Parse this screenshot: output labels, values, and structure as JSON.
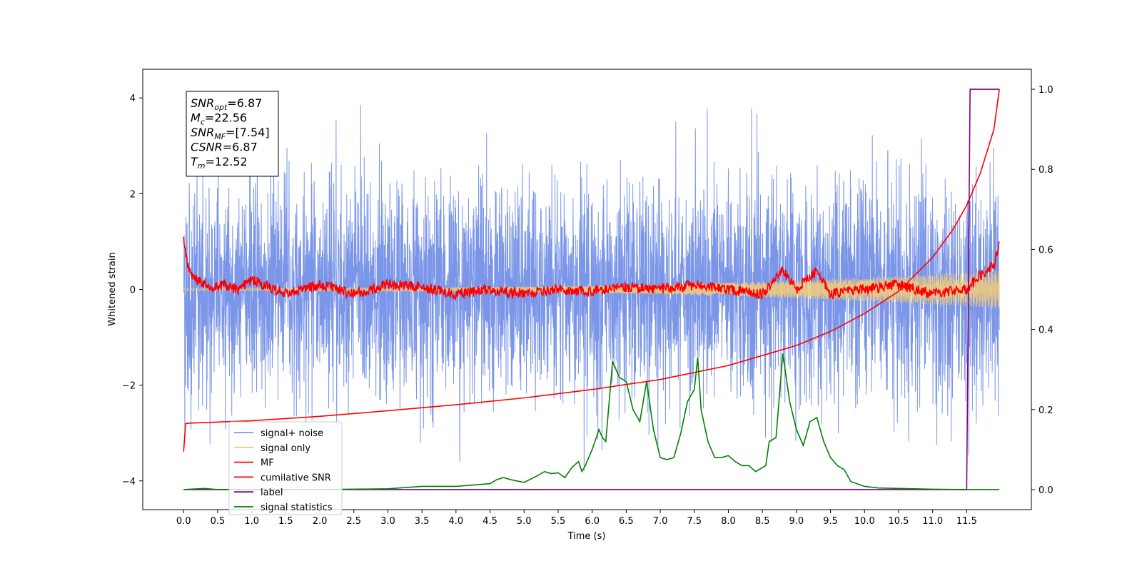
{
  "chart_data": {
    "type": "line",
    "xlabel": "Time (s)",
    "ylabel_left": "Whitened strain",
    "ylabel_right": "",
    "x_range": [
      -0.6,
      12.45
    ],
    "ylim_left": [
      -4.6,
      4.6
    ],
    "ylim_right": [
      -0.05,
      1.05
    ],
    "x_ticks": [
      "0.0",
      "0.5",
      "1.0",
      "1.5",
      "2.0",
      "2.5",
      "3.0",
      "3.5",
      "4.0",
      "4.5",
      "5.0",
      "5.5",
      "6.0",
      "6.5",
      "7.0",
      "7.5",
      "8.0",
      "8.5",
      "9.0",
      "9.5",
      "10.0",
      "10.5",
      "11.0",
      "11.5"
    ],
    "x_tick_values": [
      0,
      0.5,
      1,
      1.5,
      2,
      2.5,
      3,
      3.5,
      4,
      4.5,
      5,
      5.5,
      6,
      6.5,
      7,
      7.5,
      8,
      8.5,
      9,
      9.5,
      10,
      10.5,
      11,
      11.5
    ],
    "y_ticks_left": [
      4,
      2,
      0,
      -2,
      -4
    ],
    "y_ticks_right": [
      1.0,
      0.8,
      0.6,
      0.4,
      0.2,
      0.0
    ],
    "annotation": {
      "lines": [
        {
          "var": "SNR",
          "sub": "opt",
          "value": "=6.87"
        },
        {
          "var": "M",
          "sub": "c",
          "value": "=22.56"
        },
        {
          "var": "SNR",
          "sub": "MF",
          "value": "=[7.54]"
        },
        {
          "var": "CSNR",
          "sub": "",
          "value": "=6.87"
        },
        {
          "var": "T",
          "sub": "m",
          "value": "=12.52"
        }
      ]
    },
    "legend": {
      "placement": "lower-left",
      "entries": [
        {
          "label": "signal+ noise",
          "color": "#7b96e8"
        },
        {
          "label": "signal only",
          "color": "#f5cc7a"
        },
        {
          "label": "MF",
          "color": "#ff0000"
        },
        {
          "label": "cumilative SNR",
          "color": "#ff0000"
        },
        {
          "label": "label",
          "color": "#800080"
        },
        {
          "label": "signal statistics",
          "color": "#008000"
        }
      ]
    },
    "series": [
      {
        "name": "signal+ noise",
        "axis": "left",
        "color": "#7b96e8",
        "style": "dense-noise",
        "x_start": 0.0,
        "x_end": 11.98,
        "std": 1.1,
        "peak_max": 4.15,
        "peak_min": -3.9
      },
      {
        "name": "signal only",
        "axis": "left",
        "color": "#f5cc7a",
        "style": "chirp",
        "x_start": 0.0,
        "x_end": 11.98,
        "amplitude_start": 0.03,
        "amplitude_end": 0.4
      },
      {
        "name": "MF",
        "axis": "left",
        "color": "#ff0000",
        "x": [
          0.0,
          0.05,
          0.1,
          0.2,
          0.4,
          0.6,
          0.8,
          1.0,
          1.5,
          2.0,
          2.5,
          3.0,
          3.5,
          4.0,
          4.5,
          5.0,
          5.5,
          6.0,
          6.5,
          7.0,
          7.5,
          8.0,
          8.5,
          8.8,
          9.0,
          9.3,
          9.5,
          10.0,
          10.5,
          11.0,
          11.5,
          11.7,
          11.9,
          11.98
        ],
        "y": [
          1.0,
          0.6,
          0.3,
          0.2,
          0.05,
          0.1,
          0.0,
          0.2,
          -0.1,
          0.1,
          -0.1,
          0.1,
          0.05,
          -0.1,
          0.0,
          -0.1,
          0.0,
          -0.05,
          0.05,
          0.0,
          0.1,
          0.0,
          -0.1,
          0.4,
          0.0,
          0.4,
          -0.1,
          0.0,
          0.1,
          -0.1,
          0.0,
          0.3,
          0.5,
          1.0
        ]
      },
      {
        "name": "cumilative SNR",
        "axis": "right",
        "color": "#ff0000",
        "x": [
          0.0,
          0.03,
          0.1,
          1,
          2,
          3,
          4,
          5,
          6,
          7,
          8,
          8.5,
          9,
          9.5,
          10,
          10.5,
          11,
          11.3,
          11.5,
          11.7,
          11.9,
          11.98
        ],
        "y": [
          0.095,
          0.165,
          0.166,
          0.172,
          0.183,
          0.197,
          0.212,
          0.229,
          0.25,
          0.275,
          0.31,
          0.335,
          0.36,
          0.395,
          0.44,
          0.495,
          0.58,
          0.65,
          0.71,
          0.79,
          0.9,
          1.0
        ]
      },
      {
        "name": "label",
        "axis": "right",
        "color": "#800080",
        "x": [
          0.0,
          11.5,
          11.55,
          11.98
        ],
        "y": [
          0.0,
          0.0,
          1.0,
          1.0
        ]
      },
      {
        "name": "signal statistics",
        "axis": "right",
        "color": "#008000",
        "x": [
          0.0,
          0.3,
          0.5,
          1.0,
          2.0,
          3.0,
          3.5,
          4.0,
          4.3,
          4.5,
          4.6,
          4.7,
          4.8,
          5.0,
          5.2,
          5.3,
          5.4,
          5.5,
          5.6,
          5.7,
          5.8,
          5.85,
          5.9,
          6.0,
          6.1,
          6.15,
          6.2,
          6.3,
          6.4,
          6.5,
          6.6,
          6.7,
          6.8,
          6.9,
          7.0,
          7.1,
          7.2,
          7.3,
          7.4,
          7.5,
          7.55,
          7.6,
          7.7,
          7.8,
          7.9,
          8.0,
          8.1,
          8.2,
          8.3,
          8.4,
          8.5,
          8.55,
          8.6,
          8.7,
          8.8,
          8.9,
          9.0,
          9.1,
          9.2,
          9.3,
          9.4,
          9.5,
          9.6,
          9.7,
          9.8,
          10.0,
          10.2,
          10.5,
          11.0,
          11.5,
          11.98
        ],
        "y": [
          0.0,
          0.003,
          0.0,
          0.0,
          0.0,
          0.002,
          0.008,
          0.008,
          0.012,
          0.015,
          0.025,
          0.03,
          0.025,
          0.018,
          0.035,
          0.045,
          0.04,
          0.042,
          0.03,
          0.055,
          0.07,
          0.045,
          0.06,
          0.1,
          0.15,
          0.13,
          0.12,
          0.32,
          0.28,
          0.27,
          0.2,
          0.17,
          0.27,
          0.15,
          0.08,
          0.075,
          0.08,
          0.14,
          0.22,
          0.25,
          0.33,
          0.2,
          0.12,
          0.08,
          0.08,
          0.085,
          0.07,
          0.06,
          0.06,
          0.045,
          0.055,
          0.06,
          0.12,
          0.13,
          0.34,
          0.22,
          0.15,
          0.11,
          0.17,
          0.18,
          0.12,
          0.08,
          0.06,
          0.05,
          0.02,
          0.008,
          0.004,
          0.003,
          0.001,
          0.0,
          0.0
        ]
      }
    ]
  }
}
